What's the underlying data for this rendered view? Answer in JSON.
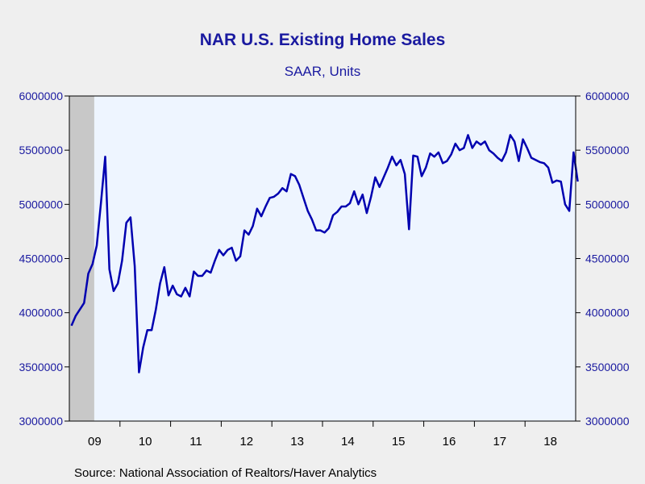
{
  "chart_data": {
    "type": "line",
    "title": "NAR U.S. Existing Home Sales",
    "subtitle": "SAAR, Units",
    "source": "Source:  National Association of Realtors/Haver Analytics",
    "ylim": [
      3000000,
      6000000
    ],
    "yticks": [
      3000000,
      3500000,
      4000000,
      4500000,
      5000000,
      5500000,
      6000000
    ],
    "ytick_labels": [
      "3000000",
      "3500000",
      "4000000",
      "4500000",
      "5000000",
      "5500000",
      "6000000"
    ],
    "x_year_labels": [
      "09",
      "10",
      "11",
      "12",
      "13",
      "14",
      "15",
      "16",
      "17",
      "18"
    ],
    "x_range": [
      "2009-01",
      "2018-12"
    ],
    "shaded_region": {
      "start": "2009-01",
      "end": "2009-06",
      "color": "#c8c8c8"
    },
    "grid": false,
    "plot_background": "#eef5ff",
    "line_color": "#0000b0",
    "series": [
      {
        "x_start": "2009-01",
        "frequency": "monthly",
        "values": [
          3880000,
          3970000,
          4030000,
          4090000,
          4360000,
          4450000,
          4620000,
          5020000,
          5440000,
          4400000,
          4200000,
          4270000,
          4480000,
          4830000,
          4880000,
          4430000,
          3450000,
          3680000,
          3840000,
          3840000,
          4030000,
          4270000,
          4420000,
          4160000,
          4250000,
          4170000,
          4150000,
          4230000,
          4150000,
          4380000,
          4340000,
          4340000,
          4390000,
          4370000,
          4480000,
          4580000,
          4530000,
          4580000,
          4600000,
          4480000,
          4520000,
          4760000,
          4720000,
          4800000,
          4960000,
          4890000,
          4980000,
          5060000,
          5070000,
          5100000,
          5150000,
          5120000,
          5280000,
          5260000,
          5180000,
          5060000,
          4940000,
          4860000,
          4760000,
          4760000,
          4740000,
          4780000,
          4900000,
          4930000,
          4980000,
          4980000,
          5010000,
          5120000,
          5000000,
          5090000,
          4920000,
          5070000,
          5250000,
          5160000,
          5250000,
          5340000,
          5440000,
          5360000,
          5410000,
          5280000,
          4770000,
          5450000,
          5440000,
          5260000,
          5340000,
          5470000,
          5440000,
          5480000,
          5380000,
          5400000,
          5460000,
          5560000,
          5500000,
          5520000,
          5640000,
          5520000,
          5580000,
          5550000,
          5580000,
          5500000,
          5470000,
          5430000,
          5400000,
          5480000,
          5640000,
          5580000,
          5400000,
          5600000,
          5520000,
          5430000,
          5410000,
          5390000,
          5380000,
          5340000,
          5200000,
          5220000,
          5210000,
          5000000,
          4940000,
          5480000,
          5210000
        ]
      }
    ]
  }
}
